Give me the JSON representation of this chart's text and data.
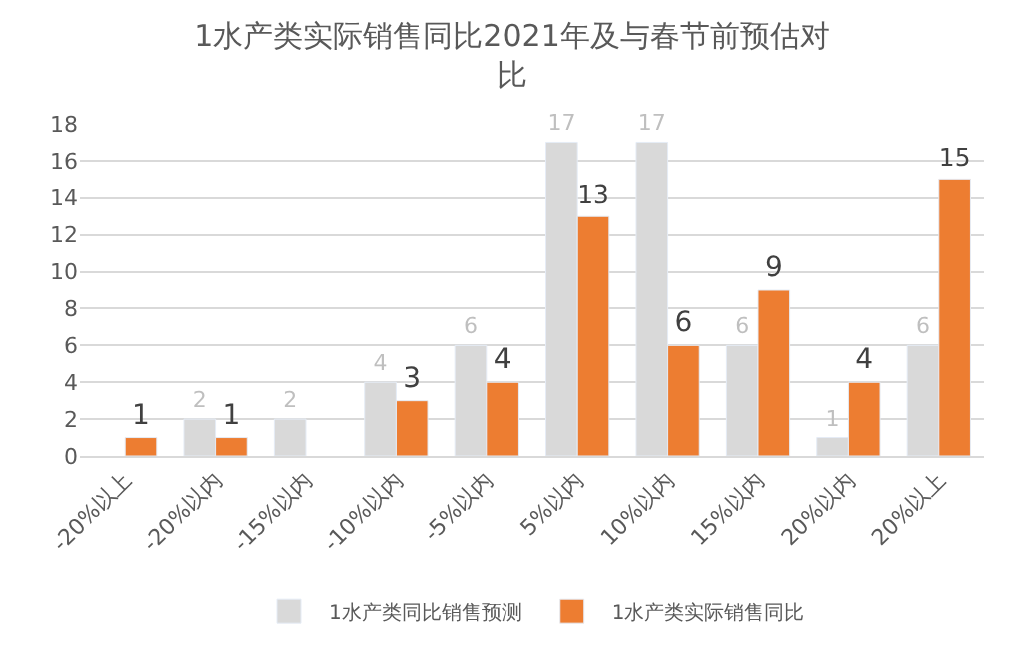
{
  "chart_data": {
    "type": "bar",
    "title": "1水产类实际销售同比2021年及与春节前预估对比",
    "categories": [
      "-20%以上",
      "-20%以内",
      "-15%以内",
      "-10%以内",
      "-5%以内",
      "5%以内",
      "10%以内",
      "15%以内",
      "20%以内",
      "20%以上"
    ],
    "series": [
      {
        "name": "1水产类同比销售预测",
        "color": "#d9d9d9",
        "values": [
          null,
          2,
          2,
          4,
          6,
          17,
          17,
          6,
          1,
          6
        ]
      },
      {
        "name": "1水产类实际销售同比",
        "color": "#ed7d31",
        "values": [
          1,
          1,
          null,
          3,
          4,
          13,
          6,
          9,
          4,
          15
        ]
      }
    ],
    "ylim": [
      0,
      18
    ],
    "yticks": [
      0,
      2,
      4,
      6,
      8,
      10,
      12,
      14,
      16,
      18
    ],
    "grid": "y",
    "legend": "bottom",
    "data_labels": true
  }
}
